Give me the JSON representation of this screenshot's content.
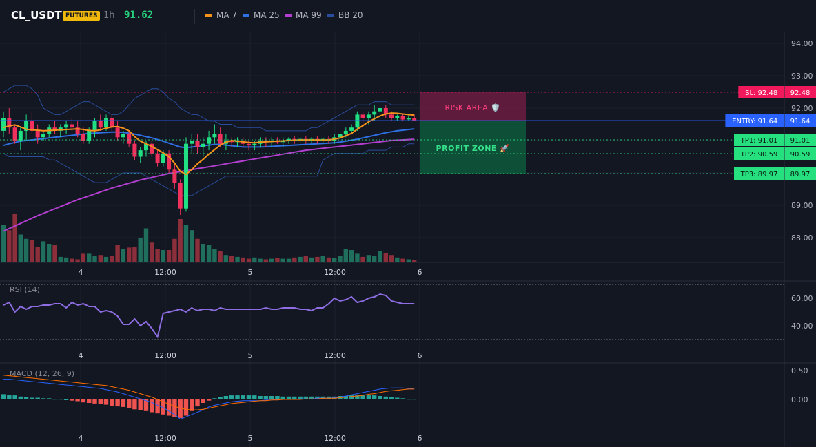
{
  "header": {
    "symbol": "CL_USDT",
    "badge": "FUTURES",
    "timeframe": "1h",
    "last_price": "91.62",
    "legend": [
      {
        "label": "MA 7",
        "color": "#f7931a"
      },
      {
        "label": "MA 25",
        "color": "#2f6fe4"
      },
      {
        "label": "MA 99",
        "color": "#b33fd1"
      },
      {
        "label": "BB 20",
        "color": "#2a4c9c"
      }
    ]
  },
  "price_axis": {
    "ticks": [
      "94.00",
      "93.00",
      "92.00",
      "89.00",
      "88.00"
    ]
  },
  "time_axis": {
    "ticks": [
      "4",
      "12:00",
      "5",
      "12:00",
      "6"
    ]
  },
  "levels": {
    "sl": {
      "label": "SL: 92.48",
      "value": "92.48",
      "color": "#f0195b"
    },
    "entry": {
      "label": "ENTRY: 91.64",
      "value": "91.64",
      "color": "#2962ff"
    },
    "tp1": {
      "label": "TP1: 91.01",
      "value": "91.01",
      "color": "#26e07f"
    },
    "tp2": {
      "label": "TP2: 90.59",
      "value": "90.59",
      "color": "#26e07f"
    },
    "tp3": {
      "label": "TP3: 89.97",
      "value": "89.97",
      "color": "#26e07f"
    }
  },
  "zones": {
    "risk": "RISK AREA 🛡️",
    "profit": "PROFIT ZONE 🚀"
  },
  "rsi": {
    "title": "RSI (14)",
    "ticks": [
      "60.00",
      "40.00"
    ]
  },
  "macd": {
    "title": "MACD (12, 26, 9)",
    "ticks": [
      "0.50",
      "0.00"
    ]
  },
  "chart_data": {
    "type": "candlestick",
    "price_range": [
      87.2,
      94.3
    ],
    "candles": [
      [
        91.3,
        91.9,
        91.1,
        91.7
      ],
      [
        91.7,
        92.0,
        91.2,
        91.4
      ],
      [
        91.4,
        91.5,
        90.9,
        91.0
      ],
      [
        91.0,
        91.4,
        90.7,
        91.3
      ],
      [
        91.3,
        91.8,
        91.0,
        91.6
      ],
      [
        91.6,
        91.9,
        91.2,
        91.3
      ],
      [
        91.3,
        91.5,
        90.9,
        91.1
      ],
      [
        91.1,
        91.3,
        91.0,
        91.2
      ],
      [
        91.2,
        91.5,
        91.1,
        91.4
      ],
      [
        91.4,
        91.6,
        91.2,
        91.3
      ],
      [
        91.3,
        91.5,
        91.1,
        91.4
      ],
      [
        91.4,
        91.6,
        91.2,
        91.5
      ],
      [
        91.5,
        91.7,
        91.3,
        91.4
      ],
      [
        91.4,
        91.6,
        91.1,
        91.2
      ],
      [
        91.2,
        91.4,
        90.9,
        91.0
      ],
      [
        91.0,
        91.4,
        90.9,
        91.3
      ],
      [
        91.3,
        91.7,
        91.1,
        91.6
      ],
      [
        91.6,
        91.8,
        91.3,
        91.4
      ],
      [
        91.4,
        91.8,
        91.3,
        91.7
      ],
      [
        91.7,
        91.8,
        91.3,
        91.4
      ],
      [
        91.4,
        91.6,
        91.0,
        91.1
      ],
      [
        91.1,
        91.3,
        90.9,
        91.2
      ],
      [
        91.2,
        91.3,
        90.8,
        90.9
      ],
      [
        90.9,
        91.0,
        90.4,
        90.5
      ],
      [
        90.5,
        90.8,
        90.3,
        90.7
      ],
      [
        90.7,
        91.0,
        90.5,
        90.9
      ],
      [
        90.9,
        91.0,
        90.5,
        90.6
      ],
      [
        90.6,
        90.7,
        90.2,
        90.3
      ],
      [
        90.3,
        90.7,
        90.2,
        90.6
      ],
      [
        90.6,
        90.7,
        90.0,
        90.1
      ],
      [
        90.1,
        90.3,
        89.5,
        89.7
      ],
      [
        89.7,
        89.8,
        88.7,
        88.9
      ],
      [
        88.9,
        91.1,
        88.8,
        90.9
      ],
      [
        90.9,
        91.2,
        90.6,
        91.0
      ],
      [
        91.0,
        91.2,
        90.6,
        90.8
      ],
      [
        90.8,
        91.1,
        90.5,
        90.9
      ],
      [
        90.9,
        91.3,
        90.7,
        91.1
      ],
      [
        91.1,
        91.5,
        90.9,
        91.2
      ],
      [
        91.2,
        91.4,
        90.8,
        90.9
      ],
      [
        90.9,
        91.2,
        90.7,
        91.0
      ],
      [
        91.0,
        91.1,
        90.8,
        90.95
      ],
      [
        90.95,
        91.1,
        90.8,
        91.0
      ],
      [
        91.0,
        91.1,
        90.8,
        90.9
      ],
      [
        90.9,
        91.0,
        90.7,
        90.85
      ],
      [
        90.85,
        91.0,
        90.7,
        90.9
      ],
      [
        90.9,
        91.1,
        90.8,
        91.0
      ],
      [
        91.0,
        91.1,
        90.8,
        90.95
      ],
      [
        90.95,
        91.1,
        90.8,
        91.0
      ],
      [
        91.0,
        91.1,
        90.9,
        90.95
      ],
      [
        90.95,
        91.1,
        90.8,
        91.0
      ],
      [
        91.0,
        91.1,
        90.9,
        91.05
      ],
      [
        91.05,
        91.15,
        90.9,
        91.0
      ],
      [
        91.0,
        91.1,
        90.9,
        91.05
      ],
      [
        91.05,
        91.15,
        90.9,
        91.0
      ],
      [
        91.0,
        91.1,
        90.9,
        91.05
      ],
      [
        91.05,
        91.15,
        90.9,
        91.0
      ],
      [
        91.0,
        91.1,
        90.9,
        91.05
      ],
      [
        91.05,
        91.15,
        90.9,
        91.0
      ],
      [
        91.0,
        91.2,
        90.9,
        91.1
      ],
      [
        91.1,
        91.3,
        91.0,
        91.2
      ],
      [
        91.2,
        91.4,
        91.1,
        91.3
      ],
      [
        91.3,
        91.5,
        91.2,
        91.4
      ],
      [
        91.4,
        91.9,
        91.3,
        91.8
      ],
      [
        91.8,
        91.9,
        91.5,
        91.7
      ],
      [
        91.7,
        91.9,
        91.5,
        91.8
      ],
      [
        91.8,
        92.1,
        91.6,
        91.9
      ],
      [
        91.9,
        92.2,
        91.7,
        92.0
      ],
      [
        92.0,
        92.1,
        91.7,
        91.8
      ],
      [
        91.8,
        91.9,
        91.6,
        91.7
      ],
      [
        91.7,
        91.8,
        91.6,
        91.75
      ],
      [
        91.75,
        91.8,
        91.6,
        91.65
      ],
      [
        91.65,
        91.8,
        91.6,
        91.7
      ],
      [
        91.7,
        91.8,
        91.6,
        91.6
      ]
    ],
    "volume": [
      60,
      52,
      78,
      45,
      38,
      36,
      25,
      34,
      30,
      28,
      9,
      8,
      6,
      5,
      14,
      14,
      10,
      12,
      9,
      10,
      28,
      22,
      24,
      25,
      40,
      55,
      32,
      22,
      20,
      20,
      38,
      70,
      60,
      52,
      38,
      30,
      28,
      22,
      18,
      12,
      10,
      9,
      8,
      6,
      8,
      6,
      5,
      6,
      7,
      6,
      6,
      8,
      9,
      10,
      8,
      9,
      10,
      8,
      7,
      10,
      22,
      20,
      14,
      9,
      12,
      10,
      18,
      15,
      12,
      8,
      6,
      5,
      4
    ],
    "ma7": [
      91.4,
      91.45,
      91.48,
      91.42,
      91.35,
      91.33,
      91.32,
      91.3,
      91.31,
      91.32,
      91.33,
      91.34,
      91.35,
      91.36,
      91.34,
      91.31,
      91.3,
      91.33,
      91.38,
      91.42,
      91.43,
      91.38,
      91.3,
      91.12,
      90.98,
      90.9,
      90.82,
      90.72,
      90.62,
      90.5,
      90.3,
      90.05,
      89.95,
      90.1,
      90.28,
      90.42,
      90.58,
      90.72,
      90.86,
      90.95,
      91.0,
      90.98,
      90.96,
      90.94,
      90.93,
      90.95,
      90.96,
      90.97,
      90.98,
      90.99,
      91.0,
      91.01,
      91.02,
      91.02,
      91.02,
      91.02,
      91.02,
      91.02,
      91.04,
      91.08,
      91.15,
      91.22,
      91.35,
      91.46,
      91.58,
      91.67,
      91.76,
      91.82,
      91.85,
      91.84,
      91.82,
      91.8,
      91.78
    ],
    "ma25": [
      90.85,
      90.9,
      90.94,
      90.98,
      91.0,
      91.02,
      91.04,
      91.06,
      91.08,
      91.1,
      91.12,
      91.14,
      91.16,
      91.18,
      91.2,
      91.22,
      91.23,
      91.24,
      91.25,
      91.26,
      91.26,
      91.25,
      91.23,
      91.2,
      91.16,
      91.12,
      91.08,
      91.03,
      90.98,
      90.92,
      90.86,
      90.8,
      90.78,
      90.8,
      90.82,
      90.84,
      90.86,
      90.88,
      90.88,
      90.86,
      90.84,
      90.82,
      90.8,
      90.8,
      90.8,
      90.8,
      90.81,
      90.82,
      90.83,
      90.84,
      90.85,
      90.86,
      90.87,
      90.88,
      90.89,
      90.9,
      90.91,
      90.92,
      90.93,
      90.95,
      90.98,
      91.01,
      91.04,
      91.08,
      91.12,
      91.16,
      91.2,
      91.24,
      91.27,
      91.3,
      91.32,
      91.34,
      91.36
    ],
    "ma99": [
      88.2,
      88.28,
      88.36,
      88.44,
      88.52,
      88.6,
      88.68,
      88.75,
      88.82,
      88.89,
      88.96,
      89.03,
      89.1,
      89.17,
      89.23,
      89.29,
      89.35,
      89.41,
      89.47,
      89.53,
      89.58,
      89.63,
      89.68,
      89.73,
      89.78,
      89.82,
      89.86,
      89.9,
      89.94,
      89.98,
      90.01,
      90.04,
      90.07,
      90.1,
      90.13,
      90.16,
      90.19,
      90.22,
      90.25,
      90.28,
      90.31,
      90.34,
      90.37,
      90.4,
      90.43,
      90.46,
      90.49,
      90.52,
      90.55,
      90.58,
      90.61,
      90.64,
      90.67,
      90.7,
      90.72,
      90.74,
      90.76,
      90.78,
      90.8,
      90.82,
      90.84,
      90.86,
      90.88,
      90.9,
      90.92,
      90.94,
      90.96,
      90.98,
      91.0,
      91.01,
      91.02,
      91.03,
      91.04
    ],
    "bb_upper": [
      92.5,
      92.6,
      92.7,
      92.7,
      92.7,
      92.6,
      92.4,
      92.0,
      91.9,
      91.8,
      91.8,
      91.9,
      92.0,
      92.1,
      92.2,
      92.2,
      92.1,
      92.0,
      91.9,
      91.8,
      91.8,
      91.9,
      92.1,
      92.3,
      92.4,
      92.5,
      92.6,
      92.6,
      92.5,
      92.3,
      92.2,
      92.0,
      91.9,
      91.8,
      91.8,
      91.7,
      91.6,
      91.6,
      91.5,
      91.5,
      91.5,
      91.4,
      91.4,
      91.4,
      91.4,
      91.4,
      91.3,
      91.3,
      91.3,
      91.3,
      91.3,
      91.3,
      91.3,
      91.3,
      91.4,
      91.4,
      91.5,
      91.6,
      91.7,
      91.8,
      91.9,
      92.0,
      92.1,
      92.1,
      92.1,
      92.2,
      92.2,
      92.2,
      92.1,
      92.1,
      92.1,
      92.1,
      92.1
    ],
    "bb_lower": [
      90.6,
      90.5,
      90.5,
      90.5,
      90.5,
      90.5,
      90.5,
      90.5,
      90.4,
      90.4,
      90.3,
      90.2,
      90.1,
      90.0,
      89.9,
      89.8,
      89.7,
      89.7,
      89.7,
      89.8,
      89.9,
      90.0,
      90.0,
      90.0,
      90.0,
      89.9,
      89.8,
      89.7,
      89.6,
      89.5,
      89.4,
      89.3,
      89.3,
      89.3,
      89.4,
      89.5,
      89.6,
      89.7,
      89.8,
      89.9,
      89.9,
      89.9,
      89.9,
      89.9,
      89.9,
      89.9,
      89.9,
      89.9,
      89.9,
      89.9,
      89.9,
      89.9,
      89.9,
      89.9,
      89.9,
      89.9,
      90.4,
      90.5,
      90.6,
      90.6,
      90.6,
      90.6,
      90.6,
      90.6,
      90.7,
      90.7,
      90.7,
      90.7,
      90.8,
      90.8,
      90.8,
      90.9,
      90.9
    ],
    "rsi": [
      55,
      57,
      50,
      54,
      52,
      54,
      54,
      55,
      55,
      56,
      56,
      53,
      57,
      55,
      56,
      54,
      54,
      50,
      51,
      50,
      47,
      41,
      41,
      45,
      40,
      43,
      38,
      32,
      49,
      50,
      51,
      52,
      50,
      53,
      51,
      52,
      52,
      51,
      53,
      52,
      52,
      52,
      52,
      52,
      52,
      52,
      53,
      52,
      52,
      53,
      53,
      53,
      52,
      52,
      51,
      53,
      53,
      56,
      60,
      58,
      59,
      61,
      57,
      58,
      60,
      61,
      63,
      62,
      58,
      57,
      56,
      56,
      56
    ],
    "macd_hist": [
      0.09,
      0.08,
      0.07,
      0.05,
      0.04,
      0.03,
      0.03,
      0.02,
      0.02,
      0.01,
      0.01,
      0.0,
      -0.02,
      -0.03,
      -0.05,
      -0.06,
      -0.07,
      -0.08,
      -0.09,
      -0.11,
      -0.12,
      -0.13,
      -0.15,
      -0.17,
      -0.18,
      -0.2,
      -0.22,
      -0.24,
      -0.26,
      -0.28,
      -0.3,
      -0.32,
      -0.28,
      -0.2,
      -0.12,
      -0.06,
      -0.02,
      0.02,
      0.04,
      0.06,
      0.07,
      0.07,
      0.07,
      0.07,
      0.07,
      0.06,
      0.06,
      0.06,
      0.06,
      0.05,
      0.05,
      0.05,
      0.05,
      0.05,
      0.05,
      0.05,
      0.05,
      0.05,
      0.05,
      0.06,
      0.06,
      0.07,
      0.07,
      0.07,
      0.07,
      0.07,
      0.06,
      0.05,
      0.04,
      0.03,
      0.02,
      0.01,
      0.01
    ],
    "macd_line": [
      0.35,
      0.35,
      0.34,
      0.33,
      0.32,
      0.31,
      0.3,
      0.29,
      0.28,
      0.27,
      0.26,
      0.25,
      0.24,
      0.23,
      0.22,
      0.21,
      0.2,
      0.19,
      0.17,
      0.15,
      0.13,
      0.1,
      0.07,
      0.04,
      0.01,
      -0.02,
      -0.05,
      -0.1,
      -0.14,
      -0.2,
      -0.26,
      -0.34,
      -0.3,
      -0.26,
      -0.22,
      -0.18,
      -0.13,
      -0.1,
      -0.08,
      -0.06,
      -0.04,
      -0.03,
      -0.02,
      -0.02,
      -0.02,
      -0.02,
      -0.01,
      -0.01,
      0.0,
      0.0,
      0.0,
      0.0,
      0.01,
      0.01,
      0.01,
      0.02,
      0.02,
      0.02,
      0.03,
      0.04,
      0.06,
      0.08,
      0.1,
      0.12,
      0.14,
      0.16,
      0.18,
      0.19,
      0.2,
      0.2,
      0.2,
      0.19,
      0.18
    ],
    "macd_signal": [
      0.42,
      0.41,
      0.4,
      0.39,
      0.38,
      0.37,
      0.36,
      0.35,
      0.34,
      0.33,
      0.32,
      0.31,
      0.3,
      0.29,
      0.28,
      0.27,
      0.26,
      0.25,
      0.24,
      0.22,
      0.2,
      0.18,
      0.16,
      0.13,
      0.1,
      0.07,
      0.04,
      0.0,
      -0.04,
      -0.08,
      -0.12,
      -0.15,
      -0.17,
      -0.18,
      -0.18,
      -0.17,
      -0.15,
      -0.13,
      -0.11,
      -0.09,
      -0.07,
      -0.06,
      -0.05,
      -0.04,
      -0.03,
      -0.02,
      -0.02,
      -0.01,
      -0.01,
      0.0,
      0.0,
      0.0,
      0.0,
      0.01,
      0.01,
      0.01,
      0.02,
      0.02,
      0.02,
      0.03,
      0.04,
      0.05,
      0.06,
      0.07,
      0.09,
      0.1,
      0.12,
      0.14,
      0.15,
      0.16,
      0.17,
      0.18,
      0.18
    ]
  }
}
